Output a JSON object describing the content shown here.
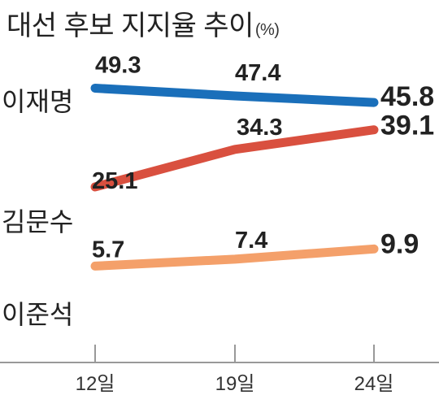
{
  "chart_data": {
    "type": "line",
    "title": "대선 후보 지지율 추이",
    "unit": "(%)",
    "categories": [
      "12일",
      "19일",
      "24일"
    ],
    "series": [
      {
        "name": "이재명",
        "values": [
          49.3,
          47.4,
          45.8
        ],
        "color": "#1a6fba"
      },
      {
        "name": "김문수",
        "values": [
          25.1,
          34.3,
          39.1
        ],
        "color": "#d9503f"
      },
      {
        "name": "이준석",
        "values": [
          5.7,
          7.4,
          9.9
        ],
        "color": "#f4a06a"
      }
    ],
    "value_labels": [
      [
        "49.3",
        "47.4",
        "45.8"
      ],
      [
        "25.1",
        "34.3",
        "39.1"
      ],
      [
        "5.7",
        "7.4",
        "9.9"
      ]
    ],
    "axis_color": "#999999"
  }
}
